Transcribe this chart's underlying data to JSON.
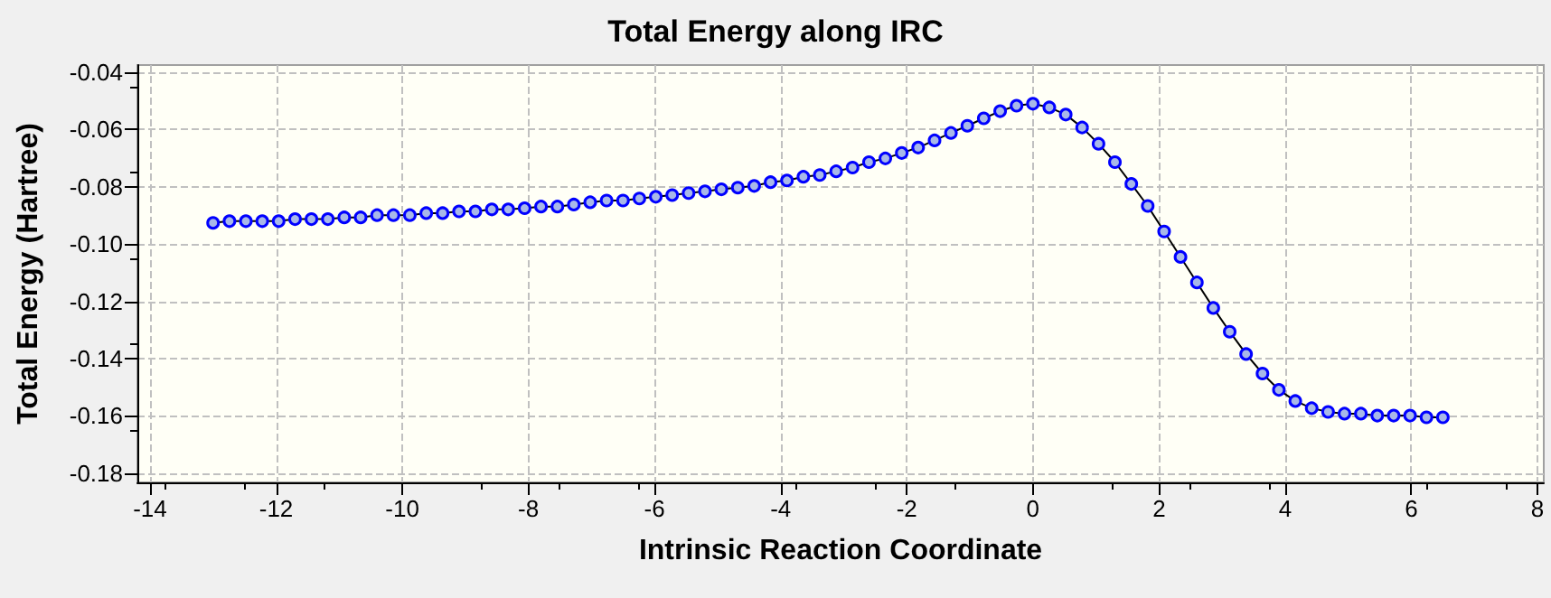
{
  "chart_data": {
    "type": "line",
    "title": "Total Energy along IRC",
    "xlabel": "Intrinsic Reaction Coordinate",
    "ylabel": "Total Energy (Hartree)",
    "x": [
      -13,
      -12.74,
      -12.48,
      -12.22,
      -11.96,
      -11.7,
      -11.44,
      -11.18,
      -10.92,
      -10.66,
      -10.4,
      -10.14,
      -9.88,
      -9.62,
      -9.36,
      -9.1,
      -8.84,
      -8.58,
      -8.32,
      -8.06,
      -7.8,
      -7.54,
      -7.28,
      -7.02,
      -6.76,
      -6.5,
      -6.24,
      -5.98,
      -5.72,
      -5.46,
      -5.2,
      -4.94,
      -4.68,
      -4.42,
      -4.16,
      -3.9,
      -3.64,
      -3.38,
      -3.12,
      -2.86,
      -2.6,
      -2.34,
      -2.08,
      -1.82,
      -1.56,
      -1.3,
      -1.04,
      -0.78,
      -0.52,
      -0.26,
      0,
      0.26,
      0.52,
      0.78,
      1.04,
      1.3,
      1.56,
      1.82,
      2.08,
      2.34,
      2.6,
      2.86,
      3.12,
      3.38,
      3.64,
      3.9,
      4.16,
      4.42,
      4.68,
      4.94,
      5.2,
      5.46,
      5.72,
      5.98,
      6.24,
      6.5
    ],
    "series": [
      {
        "color": "#0000ff",
        "values": [
          -0.0926,
          -0.092,
          -0.092,
          -0.092,
          -0.092,
          -0.0913,
          -0.0913,
          -0.0913,
          -0.0907,
          -0.0907,
          -0.0899,
          -0.0899,
          -0.0899,
          -0.0892,
          -0.0892,
          -0.0886,
          -0.0886,
          -0.0879,
          -0.0879,
          -0.0875,
          -0.0869,
          -0.0869,
          -0.0862,
          -0.0854,
          -0.0848,
          -0.0848,
          -0.0841,
          -0.0835,
          -0.0829,
          -0.0822,
          -0.0816,
          -0.0809,
          -0.0803,
          -0.0797,
          -0.0784,
          -0.0778,
          -0.0765,
          -0.0759,
          -0.0746,
          -0.0733,
          -0.0714,
          -0.0701,
          -0.0682,
          -0.0663,
          -0.0638,
          -0.0612,
          -0.0587,
          -0.0561,
          -0.0536,
          -0.0517,
          -0.051,
          -0.0523,
          -0.0548,
          -0.0593,
          -0.065,
          -0.0714,
          -0.079,
          -0.0867,
          -0.0956,
          -0.1045,
          -0.1134,
          -0.1223,
          -0.1306,
          -0.1384,
          -0.1452,
          -0.1509,
          -0.1548,
          -0.1573,
          -0.1586,
          -0.1592,
          -0.1592,
          -0.1599,
          -0.1599,
          -0.1599,
          -0.1605,
          -0.1605
        ]
      }
    ],
    "xlim": [
      -14.2,
      8.1
    ],
    "xticks": [
      -14,
      -12,
      -10,
      -8,
      -6,
      -4,
      -2,
      0,
      2,
      4,
      6,
      8
    ],
    "ylim": [
      -0.1832,
      -0.0375
    ],
    "yticks": [
      -0.04,
      -0.06,
      -0.08,
      {
        "value": -0.1,
        "label": "-0.10"
      },
      -0.12,
      -0.14,
      -0.16,
      -0.18
    ],
    "grid": true,
    "marker": "circle",
    "line_style": "solid"
  }
}
